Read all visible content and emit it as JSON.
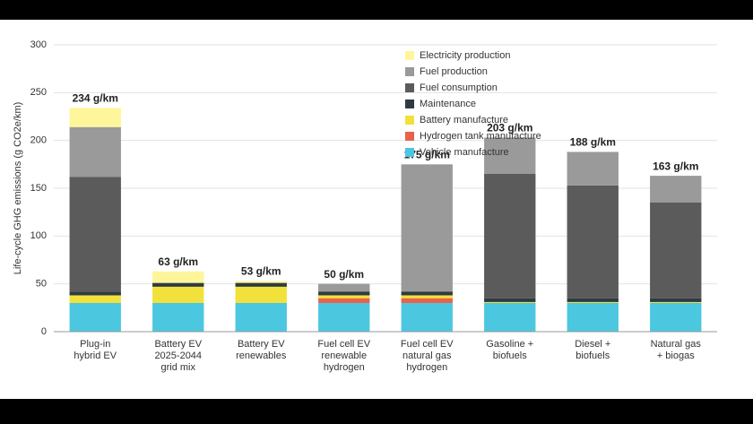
{
  "chart_data": {
    "type": "stacked-bar",
    "y_label": "Life-cycle GHG emissions (g CO2e/km)",
    "categories": [
      "Plug-in hybrid EV",
      "Battery EV 2025-2044 grid mix",
      "Battery EV renewables",
      "Fuel cell EV renewable hydrogen",
      "Fuel cell EV natural gas hydrogen",
      "Gasoline + biofuels",
      "Diesel + biofuels",
      "Natural gas + biogas"
    ],
    "series": [
      {
        "name": "Vehicle manufacture",
        "color": "#4cc7e0",
        "values": [
          30,
          30,
          30,
          30,
          30,
          30,
          30,
          30
        ]
      },
      {
        "name": "Hydrogen tank manufacture",
        "color": "#e8634a",
        "values": [
          0,
          0,
          0,
          5,
          5,
          0,
          0,
          0
        ]
      },
      {
        "name": "Battery manufacture",
        "color": "#f2e13a",
        "values": [
          8,
          17,
          17,
          3,
          3,
          1,
          1,
          1
        ]
      },
      {
        "name": "Maintenance",
        "color": "#2f3b40",
        "values": [
          4,
          4,
          4,
          4,
          4,
          4,
          4,
          4
        ]
      },
      {
        "name": "Fuel consumption",
        "color": "#5b5b5b",
        "values": [
          120,
          0,
          0,
          0,
          0,
          130,
          118,
          100
        ]
      },
      {
        "name": "Fuel production",
        "color": "#9a9a9a",
        "values": [
          52,
          0,
          0,
          8,
          133,
          38,
          35,
          28
        ]
      },
      {
        "name": "Electricity production",
        "color": "#fff59a",
        "values": [
          20,
          12,
          2,
          0,
          0,
          0,
          0,
          0
        ]
      }
    ],
    "totals": [
      234,
      63,
      53,
      50,
      175,
      203,
      188,
      163
    ],
    "total_labels": [
      "234 g/km",
      "63 g/km",
      "53 g/km",
      "50 g/km",
      "175 g/km",
      "203 g/km",
      "188 g/km",
      "163 g/km"
    ],
    "ylim": [
      0,
      300
    ],
    "yticks": [
      0,
      50,
      100,
      150,
      200,
      250,
      300
    ],
    "grid": true
  }
}
